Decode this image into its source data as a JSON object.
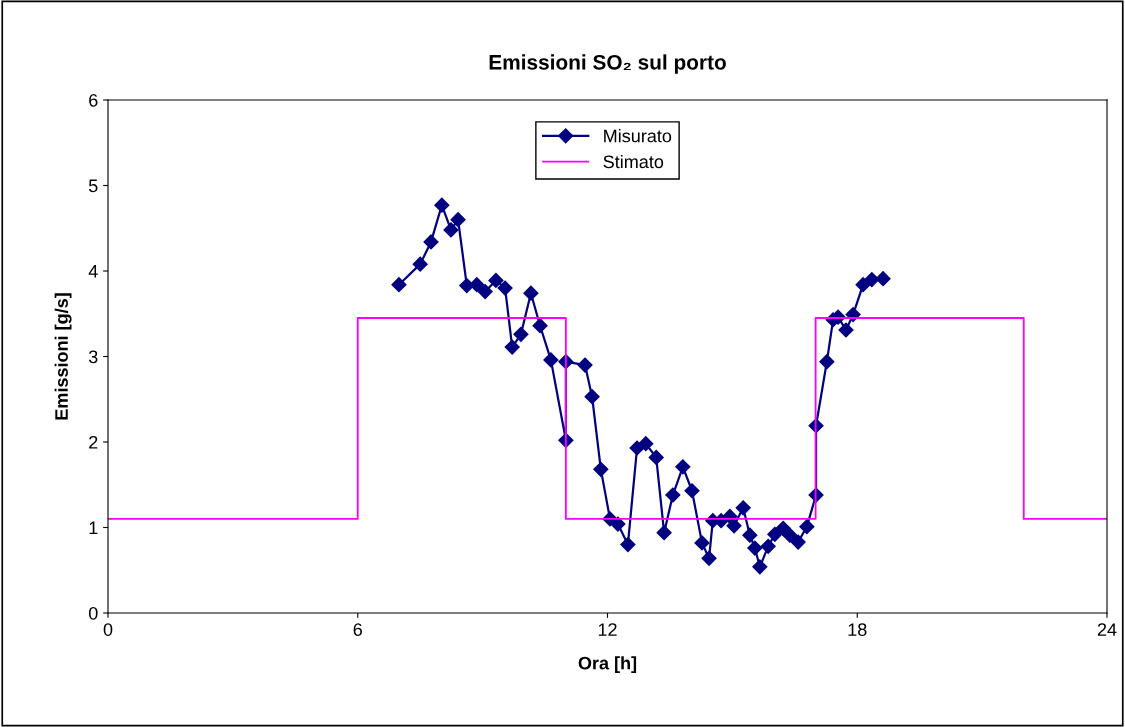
{
  "chart_data": {
    "type": "line",
    "title": "Emissioni SO₂ sul porto",
    "xlabel": "Ora [h]",
    "ylabel": "Emissioni [g/s]",
    "xlim": [
      0,
      24
    ],
    "xticks": [
      0,
      6,
      12,
      18,
      24
    ],
    "ylim": [
      0,
      6
    ],
    "yticks": [
      0,
      1,
      2,
      3,
      4,
      5,
      6
    ],
    "grid": false,
    "legend": "top",
    "series": [
      {
        "name": "Misurato",
        "color": "#000080",
        "marker": "diamond",
        "x": [
          6.99,
          7.5,
          7.76,
          8.02,
          8.24,
          8.41,
          8.62,
          8.86,
          9.06,
          9.32,
          9.54,
          9.71,
          9.92,
          10.16,
          10.38,
          10.64,
          11.0,
          11.0,
          11.46,
          11.63,
          11.84,
          12.06,
          12.25,
          12.49,
          12.71,
          12.92,
          13.17,
          13.36,
          13.57,
          13.81,
          14.03,
          14.27,
          14.44,
          14.53,
          14.73,
          14.94,
          15.04,
          15.26,
          15.42,
          15.54,
          15.66,
          15.86,
          16.02,
          16.22,
          16.38,
          16.58,
          16.79,
          17.01,
          17.01,
          17.27,
          17.42,
          17.54,
          17.73,
          17.9,
          18.14,
          18.35,
          18.62
        ],
        "values": [
          3.84,
          4.08,
          4.34,
          4.77,
          4.48,
          4.6,
          3.83,
          3.84,
          3.76,
          3.89,
          3.8,
          3.11,
          3.26,
          3.74,
          3.36,
          2.96,
          2.02,
          2.94,
          2.9,
          2.53,
          1.68,
          1.1,
          1.04,
          0.8,
          1.93,
          1.98,
          1.82,
          0.94,
          1.38,
          1.71,
          1.43,
          0.82,
          0.64,
          1.08,
          1.08,
          1.13,
          1.02,
          1.23,
          0.91,
          0.76,
          0.54,
          0.78,
          0.92,
          0.99,
          0.91,
          0.83,
          1.01,
          1.38,
          2.19,
          2.94,
          3.43,
          3.46,
          3.31,
          3.49,
          3.84,
          3.9,
          3.91
        ]
      },
      {
        "name": "Stimato",
        "color": "#ff00ff",
        "type": "step",
        "marker": "none",
        "x": [
          0,
          6,
          11,
          17,
          22,
          24
        ],
        "values": [
          1.1,
          3.45,
          1.1,
          3.45,
          1.1,
          1.1
        ]
      }
    ]
  }
}
